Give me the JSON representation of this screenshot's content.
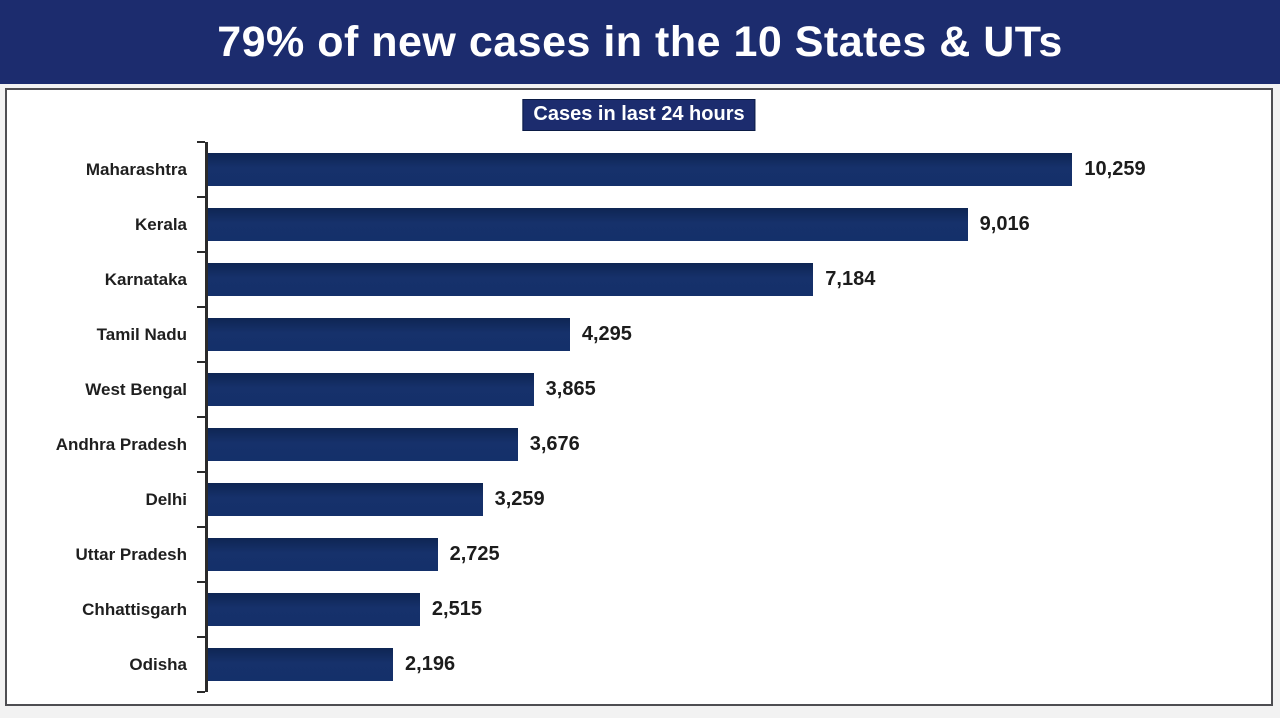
{
  "header": {
    "title": "79% of new cases in the 10 States & UTs"
  },
  "chart_data": {
    "type": "bar",
    "orientation": "horizontal",
    "title": "Cases in last 24 hours",
    "categories": [
      "Maharashtra",
      "Kerala",
      "Karnataka",
      "Tamil Nadu",
      "West Bengal",
      "Andhra Pradesh",
      "Delhi",
      "Uttar Pradesh",
      "Chhattisgarh",
      "Odisha"
    ],
    "values": [
      10259,
      9016,
      7184,
      4295,
      3865,
      3676,
      3259,
      2725,
      2515,
      2196
    ],
    "value_labels": [
      "10,259",
      "9,016",
      "7,184",
      "4,295",
      "3,865",
      "3,676",
      "3,259",
      "2,725",
      "2,515",
      "2,196"
    ],
    "xlabel": "",
    "ylabel": "",
    "xlim": [
      0,
      12450
    ],
    "grid": false,
    "legend": null,
    "bar_color": "#14306b"
  },
  "colors": {
    "banner_bg": "#1c2c6e",
    "badge_bg": "#1c2c6e",
    "bar": "#14306b",
    "axis": "#2b2b2b",
    "text": "#1f1f1f",
    "panel_border": "#4e4e52"
  }
}
